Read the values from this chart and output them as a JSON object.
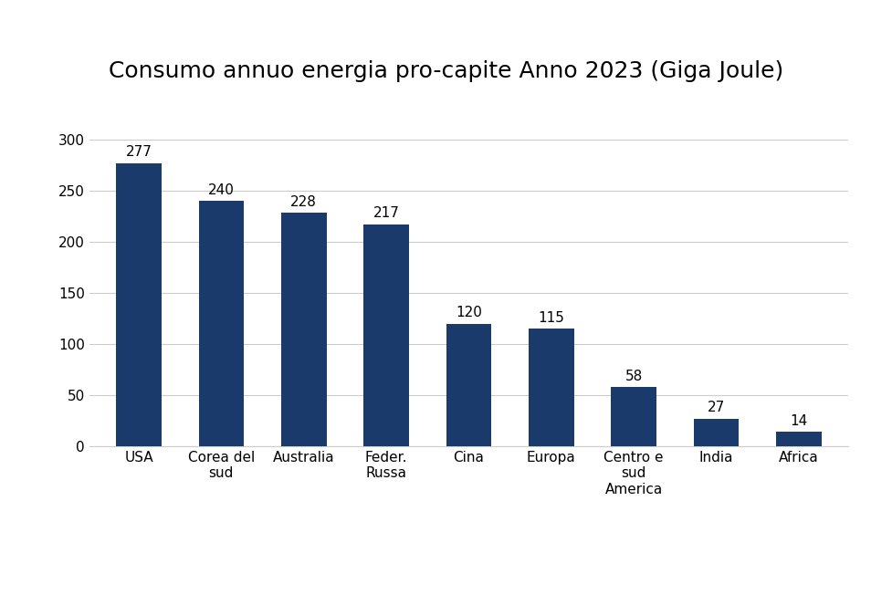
{
  "title": "Consumo annuo energia pro-capite Anno 2023 (Giga Joule)",
  "categories": [
    "USA",
    "Corea del\nsud",
    "Australia",
    "Feder.\nRussa",
    "Cina",
    "Europa",
    "Centro e\nsud\nAmerica",
    "India",
    "Africa"
  ],
  "values": [
    277,
    240,
    228,
    217,
    120,
    115,
    58,
    27,
    14
  ],
  "bar_color": "#1a3a6b",
  "ylim": [
    0,
    320
  ],
  "yticks": [
    0,
    50,
    100,
    150,
    200,
    250,
    300
  ],
  "title_fontsize": 18,
  "label_fontsize": 11,
  "tick_fontsize": 11,
  "value_fontsize": 11,
  "background_color": "#ffffff",
  "grid_color": "#cccccc"
}
